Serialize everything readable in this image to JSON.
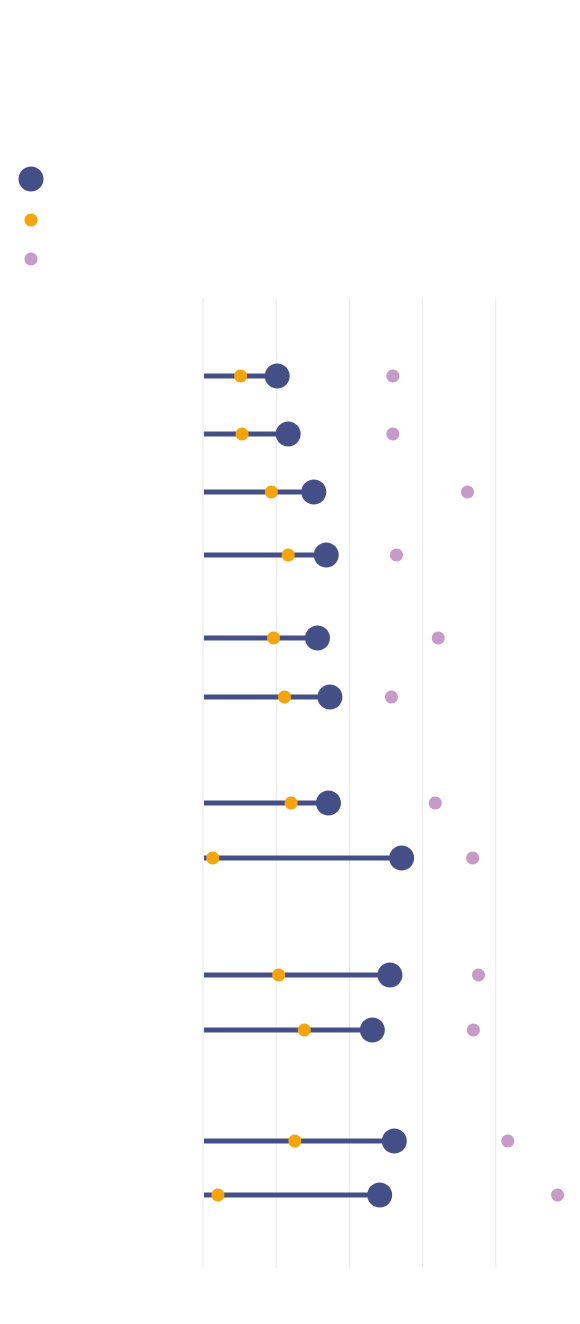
{
  "chart_data": {
    "type": "scatter",
    "subtype": "dumbbell-lollipop",
    "title": "",
    "xlabel": "",
    "ylabel": "",
    "grid": true,
    "legend_position": "top-left",
    "x_range": [
      0,
      5
    ],
    "series": [
      {
        "key": "main",
        "color": "#454f87",
        "marker": "large-circle",
        "values": [
          1.0,
          1.15,
          1.5,
          1.67,
          1.55,
          1.72,
          1.7,
          2.7,
          2.54,
          2.3,
          2.6,
          2.4
        ]
      },
      {
        "key": "secondary",
        "color": "#f7a30a",
        "marker": "small-circle",
        "values": [
          0.5,
          0.52,
          0.92,
          1.15,
          0.95,
          1.1,
          1.19,
          0.12,
          1.02,
          1.37,
          1.24,
          0.19
        ]
      },
      {
        "key": "tertiary",
        "color": "#c69bc9",
        "marker": "small-circle",
        "values": [
          2.58,
          2.58,
          3.6,
          2.63,
          3.2,
          2.56,
          3.16,
          3.67,
          3.75,
          3.68,
          4.15,
          4.83
        ]
      }
    ],
    "groups": [
      {
        "row_count": 4
      },
      {
        "row_count": 2
      },
      {
        "row_count": 2
      },
      {
        "row_count": 2
      },
      {
        "row_count": 2
      }
    ]
  }
}
